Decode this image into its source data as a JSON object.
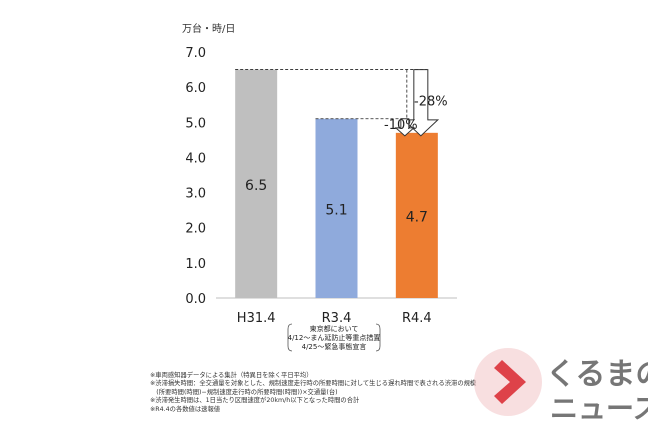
{
  "chart_data": {
    "type": "bar",
    "unit_label": "万台・時/日",
    "categories": [
      "H31.4",
      "R3.4",
      "R4.4"
    ],
    "values": [
      6.5,
      5.1,
      4.7
    ],
    "value_labels": [
      "6.5",
      "5.1",
      "4.7"
    ],
    "bar_colors": [
      "#bfbfbf",
      "#8faadc",
      "#ed7d31"
    ],
    "ylim": [
      0,
      7.0
    ],
    "yticks": [
      "0.0",
      "1.0",
      "2.0",
      "3.0",
      "4.0",
      "5.0",
      "6.0",
      "7.0"
    ],
    "grid": false,
    "category_note": [
      "東京都において",
      "4/12～まん延防止等重点措置",
      "4/25～緊急事態宣言"
    ],
    "annotations": [
      {
        "text": "-10%",
        "from": 5.1,
        "to": 4.7
      },
      {
        "text": "-28%",
        "from": 6.5,
        "to": 4.7
      }
    ]
  },
  "notes": [
    "※車両感知器データによる集計（特異日を除く平日平均）",
    "※渋滞損失時間：全交通量を対象とした、規制速度走行時の所要時間に対して生じる遅れ時間で表される渋滞の規模",
    "　(所要時間(時間)−規制速度走行時の所要時間(時間))×交通量(台)",
    "※渋滞発生時間は、1日当たり区間速度が20km/h以下となった時間の合計",
    "※R4.4の各数値は速報値"
  ],
  "logo": {
    "line1": "くるまの",
    "line2": "ニュース",
    "accent_color": "#d9272e"
  }
}
